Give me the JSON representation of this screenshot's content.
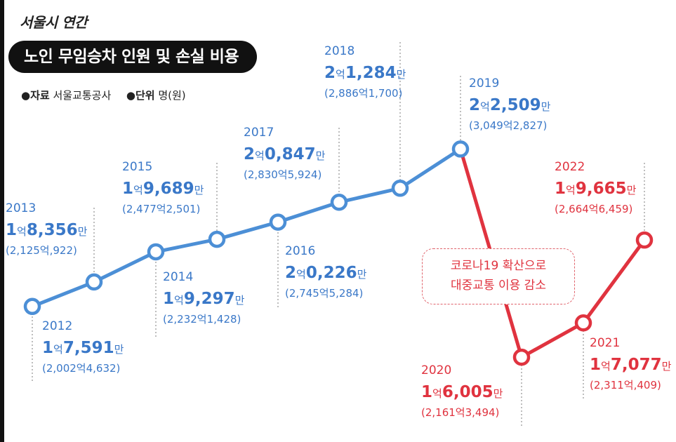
{
  "header": {
    "subtitle": "서울시 연간",
    "title": "노인 무임승차 인원 및 손실 비용",
    "source_key": "●자료",
    "source_value": "서울교통공사",
    "unit_key": "●단위",
    "unit_value": "명(원)"
  },
  "annotation": {
    "line1": "코로나19 확산으로",
    "line2": "대중교통 이용 감소"
  },
  "colors": {
    "blue": "#4c8fd6",
    "blue_text": "#3a78c8",
    "red": "#e0333f",
    "dotted": "#9a9a9a"
  },
  "chart_data": {
    "type": "line",
    "title": "노인 무임승차 인원 및 손실 비용",
    "subtitle": "서울시 연간",
    "unit": "명(원)",
    "x": [
      "2012",
      "2013",
      "2014",
      "2015",
      "2016",
      "2017",
      "2018",
      "2019",
      "2020",
      "2021",
      "2022"
    ],
    "riders": [
      175910000,
      183560000,
      192970000,
      196890000,
      202260000,
      208470000,
      212840000,
      225090000,
      160050000,
      170770000,
      196650000
    ],
    "value_labels": [
      [
        "1억",
        "7,591",
        "만"
      ],
      [
        "1억",
        "8,356",
        "만"
      ],
      [
        "1억",
        "9,297",
        "만"
      ],
      [
        "1억",
        "9,689",
        "만"
      ],
      [
        "2억",
        "0,226",
        "만"
      ],
      [
        "2억",
        "0,847",
        "만"
      ],
      [
        "2억",
        "1,284",
        "만"
      ],
      [
        "2억",
        "2,509",
        "만"
      ],
      [
        "1억",
        "6,005",
        "만"
      ],
      [
        "1억",
        "7,077",
        "만"
      ],
      [
        "1억",
        "9,665",
        "만"
      ]
    ],
    "cost_labels": [
      "(2,002억4,632)",
      "(2,125억,922)",
      "(2,232억1,428)",
      "(2,477억2,501)",
      "(2,745억5,284)",
      "(2,830억5,924)",
      "(2,886억1,700)",
      "(3,049억2,827)",
      "(2,161억3,494)",
      "(2,311억,409)",
      "(2,664억6,459)"
    ],
    "series_colors": [
      "#4c8fd6",
      "#4c8fd6",
      "#4c8fd6",
      "#4c8fd6",
      "#4c8fd6",
      "#4c8fd6",
      "#4c8fd6",
      "#4c8fd6",
      "#e0333f",
      "#e0333f",
      "#e0333f"
    ],
    "grid": false,
    "legend": "none"
  }
}
